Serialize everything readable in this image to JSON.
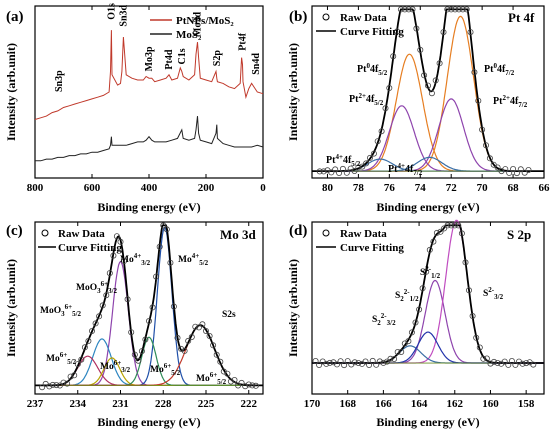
{
  "chart_data": [
    {
      "type": "line",
      "panel_label": "(a)",
      "xlabel": "Binding energy (eV)",
      "ylabel": "Intensity (arb.unit)",
      "xlim": [
        800,
        0
      ],
      "xticks": [
        "800",
        "600",
        "400",
        "200",
        "0"
      ],
      "legend": [
        "PtNPs/MoS₂",
        "MoS₂"
      ],
      "series": [
        {
          "name": "PtNPs/MoS₂",
          "color": "#c0392b",
          "x": [
            800,
            780,
            760,
            740,
            720,
            700,
            680,
            660,
            640,
            620,
            600,
            580,
            560,
            540,
            535,
            532,
            530,
            510,
            500,
            495,
            490,
            480,
            460,
            440,
            420,
            410,
            400,
            390,
            380,
            360,
            340,
            330,
            320,
            300,
            290,
            285,
            280,
            260,
            240,
            235,
            230,
            226,
            220,
            200,
            180,
            165,
            162,
            160,
            140,
            120,
            100,
            80,
            75,
            72,
            70,
            60,
            50,
            40,
            20,
            0
          ],
          "y": [
            0.34,
            0.35,
            0.36,
            0.38,
            0.39,
            0.41,
            0.42,
            0.43,
            0.44,
            0.45,
            0.46,
            0.47,
            0.48,
            0.5,
            0.62,
            0.86,
            0.6,
            0.54,
            0.55,
            0.62,
            0.82,
            0.6,
            0.58,
            0.57,
            0.57,
            0.59,
            0.58,
            0.58,
            0.56,
            0.57,
            0.58,
            0.6,
            0.57,
            0.58,
            0.64,
            0.62,
            0.59,
            0.57,
            0.6,
            0.72,
            0.79,
            0.7,
            0.58,
            0.57,
            0.56,
            0.62,
            0.58,
            0.56,
            0.55,
            0.53,
            0.52,
            0.55,
            0.7,
            0.66,
            0.56,
            0.47,
            0.52,
            0.55,
            0.5,
            0.49
          ]
        },
        {
          "name": "MoS₂",
          "color": "#222222",
          "x": [
            800,
            780,
            760,
            740,
            720,
            700,
            680,
            660,
            640,
            620,
            600,
            580,
            560,
            540,
            535,
            532,
            530,
            510,
            500,
            480,
            460,
            440,
            420,
            410,
            400,
            390,
            380,
            360,
            340,
            320,
            300,
            285,
            280,
            260,
            240,
            235,
            230,
            226,
            220,
            200,
            180,
            165,
            162,
            160,
            140,
            120,
            100,
            80,
            60,
            40,
            20,
            0
          ],
          "y": [
            0.1,
            0.1,
            0.11,
            0.11,
            0.12,
            0.12,
            0.13,
            0.13,
            0.14,
            0.14,
            0.15,
            0.15,
            0.16,
            0.17,
            0.19,
            0.24,
            0.19,
            0.19,
            0.19,
            0.19,
            0.2,
            0.21,
            0.21,
            0.22,
            0.24,
            0.22,
            0.21,
            0.21,
            0.21,
            0.22,
            0.23,
            0.28,
            0.23,
            0.22,
            0.23,
            0.28,
            0.36,
            0.26,
            0.22,
            0.21,
            0.2,
            0.26,
            0.31,
            0.23,
            0.2,
            0.19,
            0.18,
            0.18,
            0.18,
            0.18,
            0.19,
            0.18
          ]
        }
      ],
      "annotations": [
        {
          "label": "Sn3p",
          "x": 715
        },
        {
          "label": "O1s",
          "x": 532
        },
        {
          "label": "Sn3d",
          "x": 490
        },
        {
          "label": "Mo3p",
          "x": 400
        },
        {
          "label": "Pt4d",
          "x": 330
        },
        {
          "label": "C1s",
          "x": 285
        },
        {
          "label": "Mo3d",
          "x": 230
        },
        {
          "label": "S2p",
          "x": 162
        },
        {
          "label": "Pt4f",
          "x": 72
        },
        {
          "label": "Sn4d",
          "x": 25
        }
      ]
    },
    {
      "type": "line",
      "panel_label": "(b)",
      "panel_title": "Pt 4f",
      "xlabel": "Binding energy (eV)",
      "ylabel": "Intensity (arb.unit)",
      "xlim": [
        81,
        66
      ],
      "xticks": [
        "80",
        "78",
        "76",
        "74",
        "72",
        "70",
        "68",
        "66"
      ],
      "legend": [
        "Raw Data",
        "Curve Fitting"
      ],
      "fit_components": [
        {
          "label": "Pt⁰ 4f₅₂",
          "center": 74.7,
          "amp": 0.68,
          "width": 0.85,
          "color": "#e67e22"
        },
        {
          "label": "Pt⁰ 4f₇₂",
          "center": 71.4,
          "amp": 0.9,
          "width": 0.85,
          "color": "#e67e22"
        },
        {
          "label": "Pt²⁺ 4f₅₂",
          "center": 75.2,
          "amp": 0.38,
          "width": 0.8,
          "color": "#8e44ad"
        },
        {
          "label": "Pt²⁺ 4f₇₂",
          "center": 72.0,
          "amp": 0.42,
          "width": 0.8,
          "color": "#8e44ad"
        },
        {
          "label": "Pt⁴⁺ 4f₅₂",
          "center": 76.6,
          "amp": 0.07,
          "width": 0.8,
          "color": "#3a6ea5"
        },
        {
          "label": "Pt⁴⁺ 4f₇₂",
          "center": 73.4,
          "amp": 0.08,
          "width": 0.8,
          "color": "#3a6ea5"
        }
      ],
      "baseline": 0.04,
      "raw_points": {
        "start": 80.5,
        "end": 67.0,
        "step": 0.25
      }
    },
    {
      "type": "line",
      "panel_label": "(c)",
      "panel_title": "Mo 3d",
      "xlabel": "Binding energy (eV)",
      "ylabel": "Intensity (arb.unit)",
      "xlim": [
        237,
        221
      ],
      "xticks": [
        "237",
        "234",
        "231",
        "228",
        "225",
        "222"
      ],
      "legend": [
        "Raw Data",
        "Curve Fitting"
      ],
      "fit_components": [
        {
          "label": "Mo⁴⁺ 3d₃₂",
          "center": 231.0,
          "amp": 0.72,
          "width": 0.55,
          "color": "#8e44ad"
        },
        {
          "label": "Mo⁴⁺ 3d₅₂",
          "center": 227.9,
          "amp": 0.92,
          "width": 0.5,
          "color": "#1f4fa8"
        },
        {
          "label": "MoO₃⁶⁺ 3d₃₂",
          "center": 232.3,
          "amp": 0.27,
          "width": 0.65,
          "color": "#2e86c1"
        },
        {
          "label": "MoO₃⁶⁺ 3d₅₂",
          "center": 233.3,
          "amp": 0.17,
          "width": 0.7,
          "color": "#b03060"
        },
        {
          "label": "Mo⁶⁺ 3d₃₂",
          "center": 231.6,
          "amp": 0.16,
          "width": 0.55,
          "color": "#b8a300"
        },
        {
          "label": "Mo⁶⁺ 3d₅₂",
          "center": 229.0,
          "amp": 0.28,
          "width": 0.5,
          "color": "#2e8b57"
        },
        {
          "label": "S2s",
          "center": 225.4,
          "amp": 0.35,
          "width": 1.0,
          "color": "#c0392b"
        }
      ],
      "baseline": 0.05,
      "raw_points": {
        "start": 236.5,
        "end": 221.5,
        "step": 0.25
      },
      "extra_labels": [
        "Mo⁴⁺ 3d₃₂",
        "Mo⁴⁺ 3d₅₂",
        "MoO₃⁶⁺ 3d₃₂",
        "MoO₃⁶⁺ 3d₅₂",
        "S2s",
        "Mo⁶⁺ 3d₅₂",
        "Mo⁶⁺ 3d₃₂",
        "Mo⁶⁺ 3d₅₂",
        "Mo⁶⁺ 3d₅₂"
      ]
    },
    {
      "type": "line",
      "panel_label": "(d)",
      "panel_title": "S 2p",
      "xlabel": "Binding energy (eV)",
      "ylabel": "Intensity (arb.unit)",
      "xlim": [
        170,
        157
      ],
      "xticks": [
        "170",
        "168",
        "166",
        "164",
        "162",
        "160",
        "158"
      ],
      "legend": [
        "Raw Data",
        "Curve Fitting"
      ],
      "fit_components": [
        {
          "label": "S²⁻ 2p₁₂",
          "center": 163.1,
          "amp": 0.48,
          "width": 0.55,
          "color": "#8e44ad"
        },
        {
          "label": "S²⁻ 2p₃₂",
          "center": 161.9,
          "amp": 0.83,
          "width": 0.6,
          "color": "#c04cc0"
        },
        {
          "label": "S₂²⁻ 2p₁₂",
          "center": 164.5,
          "amp": 0.1,
          "width": 0.6,
          "color": "#3a6ea5"
        },
        {
          "label": "S₂²⁻ 2p₃₂",
          "center": 163.5,
          "amp": 0.18,
          "width": 0.55,
          "color": "#2233aa"
        }
      ],
      "baseline": 0.18,
      "raw_points": {
        "start": 169.8,
        "end": 157.5,
        "step": 0.2
      }
    }
  ]
}
